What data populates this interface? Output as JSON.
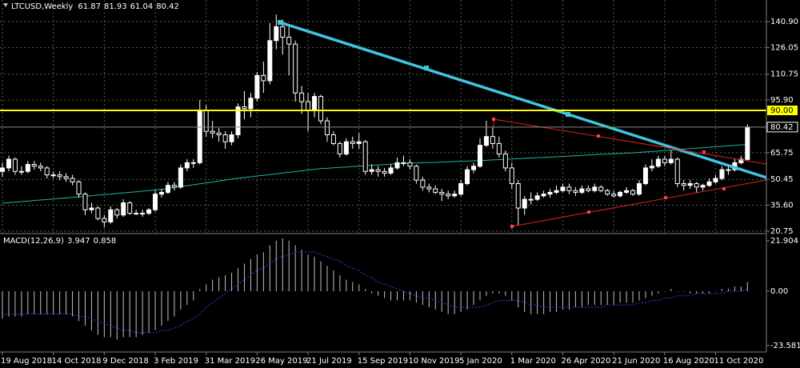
{
  "chart_data": {
    "type": "candlestick",
    "title": "LTCUSD,Weekly",
    "categories": [
      "19 Aug 2018",
      null,
      null,
      null,
      null,
      null,
      null,
      null,
      "14 Oct 2018",
      null,
      null,
      null,
      null,
      null,
      null,
      null,
      "9 Dec 2018",
      null,
      null,
      null,
      null,
      null,
      null,
      null,
      "3 Feb 2019",
      null,
      null,
      null,
      null,
      null,
      null,
      null,
      "31 Mar 2019",
      null,
      null,
      null,
      null,
      null,
      null,
      null,
      "26 May 2019",
      null,
      null,
      null,
      null,
      null,
      null,
      null,
      "21 Jul 2019",
      null,
      null,
      null,
      null,
      null,
      null,
      null,
      "15 Sep 2019",
      null,
      null,
      null,
      null,
      null,
      null,
      null,
      "10 Nov 2019",
      null,
      null,
      null,
      null,
      null,
      null,
      null,
      "5 Jan 2020",
      null,
      null,
      null,
      null,
      null,
      null,
      null,
      "1 Mar 2020",
      null,
      null,
      null,
      null,
      null,
      null,
      null,
      "26 Apr 2020",
      null,
      null,
      null,
      null,
      null,
      null,
      null,
      "21 Jun 2020",
      null,
      null,
      null,
      null,
      null,
      null,
      null,
      "16 Aug 2020",
      null,
      null,
      null,
      null,
      null,
      null,
      null,
      "11 Oct 2020",
      null,
      null,
      null,
      null,
      null
    ],
    "candles": [
      [
        55,
        60,
        52,
        57
      ],
      [
        57,
        64,
        55,
        62
      ],
      [
        62,
        63,
        53,
        55
      ],
      [
        55,
        58,
        53,
        55
      ],
      [
        55,
        61,
        54,
        59
      ],
      [
        59,
        61,
        56,
        58
      ],
      [
        58,
        60,
        55,
        57
      ],
      [
        57,
        58,
        51,
        53
      ],
      [
        53,
        55,
        51,
        53
      ],
      [
        53,
        55,
        50,
        52
      ],
      [
        52,
        54,
        49,
        51
      ],
      [
        51,
        53,
        47,
        49
      ],
      [
        49,
        50,
        40,
        42
      ],
      [
        42,
        43,
        30,
        33
      ],
      [
        33,
        37,
        31,
        34
      ],
      [
        34,
        35,
        27,
        28
      ],
      [
        28,
        30,
        23,
        26
      ],
      [
        26,
        35,
        25,
        33
      ],
      [
        33,
        34,
        28,
        30
      ],
      [
        30,
        39,
        29,
        37
      ],
      [
        37,
        38,
        30,
        31
      ],
      [
        31,
        33,
        30,
        31
      ],
      [
        31,
        33,
        29,
        31
      ],
      [
        31,
        34,
        30,
        33
      ],
      [
        33,
        44,
        32,
        42
      ],
      [
        42,
        45,
        40,
        43
      ],
      [
        43,
        49,
        42,
        47
      ],
      [
        47,
        49,
        44,
        46
      ],
      [
        46,
        59,
        45,
        57
      ],
      [
        57,
        62,
        55,
        60
      ],
      [
        60,
        62,
        57,
        60
      ],
      [
        60,
        96,
        59,
        90
      ],
      [
        90,
        93,
        75,
        78
      ],
      [
        78,
        84,
        74,
        77
      ],
      [
        77,
        80,
        72,
        76
      ],
      [
        76,
        78,
        68,
        72
      ],
      [
        72,
        78,
        70,
        76
      ],
      [
        76,
        94,
        74,
        92
      ],
      [
        92,
        101,
        85,
        91
      ],
      [
        91,
        100,
        86,
        97
      ],
      [
        97,
        112,
        95,
        110
      ],
      [
        110,
        118,
        100,
        107
      ],
      [
        107,
        140,
        105,
        130
      ],
      [
        130,
        145,
        125,
        138
      ],
      [
        138,
        142,
        122,
        132
      ],
      [
        132,
        138,
        110,
        128
      ],
      [
        128,
        130,
        95,
        100
      ],
      [
        100,
        104,
        88,
        95
      ],
      [
        95,
        100,
        78,
        90
      ],
      [
        90,
        100,
        86,
        98
      ],
      [
        98,
        99,
        82,
        84
      ],
      [
        84,
        86,
        72,
        76
      ],
      [
        76,
        78,
        70,
        71
      ],
      [
        71,
        72,
        63,
        65
      ],
      [
        65,
        74,
        64,
        72
      ],
      [
        72,
        75,
        68,
        71
      ],
      [
        71,
        77,
        68,
        72
      ],
      [
        72,
        73,
        53,
        55
      ],
      [
        55,
        59,
        53,
        56
      ],
      [
        56,
        58,
        52,
        55
      ],
      [
        55,
        57,
        52,
        54
      ],
      [
        54,
        59,
        53,
        57
      ],
      [
        57,
        63,
        56,
        60
      ],
      [
        60,
        64,
        58,
        60
      ],
      [
        60,
        62,
        56,
        58
      ],
      [
        58,
        59,
        48,
        50
      ],
      [
        50,
        52,
        44,
        46
      ],
      [
        46,
        48,
        43,
        45
      ],
      [
        45,
        47,
        42,
        43
      ],
      [
        43,
        45,
        38,
        42
      ],
      [
        42,
        44,
        39,
        41
      ],
      [
        41,
        44,
        40,
        42
      ],
      [
        42,
        50,
        41,
        48
      ],
      [
        48,
        58,
        47,
        56
      ],
      [
        56,
        60,
        54,
        58
      ],
      [
        58,
        74,
        57,
        70
      ],
      [
        70,
        84,
        69,
        75
      ],
      [
        75,
        80,
        68,
        71
      ],
      [
        71,
        75,
        63,
        65
      ],
      [
        65,
        67,
        55,
        57
      ],
      [
        57,
        60,
        45,
        48
      ],
      [
        48,
        50,
        24,
        34
      ],
      [
        34,
        41,
        30,
        39
      ],
      [
        39,
        43,
        36,
        39
      ],
      [
        39,
        43,
        38,
        41
      ],
      [
        41,
        44,
        40,
        42
      ],
      [
        42,
        45,
        40,
        43
      ],
      [
        43,
        47,
        42,
        44
      ],
      [
        44,
        48,
        43,
        46
      ],
      [
        46,
        48,
        42,
        44
      ],
      [
        44,
        46,
        41,
        43
      ],
      [
        43,
        47,
        42,
        45
      ],
      [
        45,
        47,
        43,
        44
      ],
      [
        44,
        48,
        43,
        46
      ],
      [
        46,
        47,
        43,
        44
      ],
      [
        44,
        45,
        41,
        42
      ],
      [
        42,
        44,
        40,
        41
      ],
      [
        41,
        44,
        40,
        43
      ],
      [
        43,
        46,
        42,
        44
      ],
      [
        44,
        45,
        41,
        42
      ],
      [
        42,
        50,
        41,
        48
      ],
      [
        48,
        59,
        47,
        57
      ],
      [
        57,
        62,
        55,
        58
      ],
      [
        58,
        64,
        57,
        62
      ],
      [
        62,
        64,
        58,
        60
      ],
      [
        60,
        67,
        59,
        62
      ],
      [
        62,
        63,
        46,
        48
      ],
      [
        48,
        50,
        44,
        47
      ],
      [
        47,
        50,
        45,
        48
      ],
      [
        48,
        49,
        43,
        46
      ],
      [
        46,
        48,
        44,
        47
      ],
      [
        47,
        51,
        46,
        49
      ],
      [
        49,
        53,
        48,
        51
      ],
      [
        51,
        58,
        50,
        56
      ],
      [
        56,
        58,
        53,
        56
      ],
      [
        56,
        62,
        55,
        60
      ],
      [
        60,
        64,
        59,
        62
      ],
      [
        61.87,
        81.93,
        61.04,
        80.42
      ]
    ],
    "candle_colors": {
      "up": "#ffffff",
      "down": "#000000",
      "outline": "#ffffff"
    },
    "ylim": [
      19.8,
      153.3
    ],
    "yticks": [
      {
        "value": 140.9,
        "label": "140.90"
      },
      {
        "value": 126.05,
        "label": "126.05"
      },
      {
        "value": 110.75,
        "label": "110.75"
      },
      {
        "value": 95.9,
        "label": "95.90"
      },
      {
        "value": 65.75,
        "label": "65.75"
      },
      {
        "value": 50.45,
        "label": "50.45"
      },
      {
        "value": 35.6,
        "label": "35.60"
      },
      {
        "value": 20.75,
        "label": "20.75"
      }
    ],
    "grid": true,
    "ma": {
      "color": "#20b2aa",
      "values": [
        36.8,
        37.1,
        37.4,
        37.7,
        38.0,
        38.3,
        38.6,
        38.9,
        39.2,
        39.5,
        39.8,
        40.1,
        40.4,
        40.7,
        41.1,
        41.4,
        41.7,
        42.0,
        42.4,
        42.7,
        43.0,
        43.3,
        43.7,
        44.0,
        44.4,
        44.7,
        45.2,
        45.8,
        46.3,
        46.8,
        47.4,
        47.9,
        48.4,
        48.9,
        49.5,
        50.0,
        50.6,
        51.1,
        51.5,
        51.9,
        52.4,
        52.8,
        53.2,
        53.6,
        54.1,
        54.5,
        54.9,
        55.3,
        55.8,
        56.2,
        56.6,
        56.8,
        57.1,
        57.3,
        57.5,
        57.8,
        58.0,
        58.2,
        58.5,
        58.7,
        58.9,
        59.2,
        59.4,
        59.5,
        59.7,
        59.8,
        60.0,
        60.1,
        60.2,
        60.4,
        60.5,
        60.7,
        60.8,
        60.9,
        61.1,
        61.2,
        61.4,
        61.6,
        61.8,
        62.0,
        62.1,
        62.3,
        62.5,
        62.7,
        62.9,
        63.0,
        63.2,
        63.4,
        63.6,
        63.8,
        64.0,
        64.2,
        64.4,
        64.6,
        64.8,
        64.9,
        65.1,
        65.3,
        65.5,
        65.7,
        65.9,
        66.2,
        66.4,
        66.7,
        67.0,
        67.3,
        67.5,
        67.8,
        68.1,
        68.3,
        68.6,
        68.9,
        69.2,
        69.4,
        69.7,
        70.0,
        70.2,
        70.5
      ]
    },
    "level": {
      "value": 90,
      "label": "90.00",
      "color": "#ffff00"
    },
    "last_price": {
      "value": 80.42,
      "label": "80.42"
    },
    "macd": {
      "label": "MACD(12,26,9)",
      "ylim": [
        -26.43,
        24.69
      ],
      "yticks": [
        21.904,
        {
          "value": 0,
          "label": "0.00"
        },
        -23.581
      ],
      "histogram": {
        "color": "#c0c0c0",
        "values": [
          -12,
          -11,
          -11,
          -11,
          -10,
          -10,
          -10,
          -10,
          -10,
          -10,
          -10,
          -11,
          -13,
          -15,
          -17,
          -19,
          -20,
          -20,
          -21,
          -20,
          -20,
          -20,
          -19,
          -18,
          -17,
          -15,
          -13,
          -11,
          -8,
          -6,
          -4,
          1,
          3,
          5,
          6,
          7,
          8,
          10,
          12,
          14,
          16,
          17,
          20,
          22,
          23,
          22,
          20,
          18,
          16,
          15,
          13,
          11,
          9,
          7,
          5,
          4,
          3,
          1,
          -1,
          -2,
          -3,
          -4,
          -4,
          -4,
          -4,
          -5,
          -6,
          -7,
          -8,
          -9,
          -10,
          -10,
          -9,
          -8,
          -6,
          -4,
          -2,
          -1,
          -1,
          -2,
          -4,
          -7,
          -9,
          -10,
          -10,
          -10,
          -9,
          -9,
          -8,
          -8,
          -7,
          -7,
          -6,
          -6,
          -6,
          -6,
          -6,
          -5,
          -5,
          -5,
          -4,
          -3,
          -2,
          -1,
          0,
          1,
          0,
          0,
          -1,
          -1,
          -1,
          -1,
          0,
          1,
          1,
          2,
          2,
          3.947
        ]
      },
      "signal": {
        "color": "#2a46e0",
        "values": [
          -10,
          -10,
          -10,
          -10,
          -10,
          -10,
          -10,
          -10,
          -10,
          -10,
          -10,
          -10,
          -11,
          -11,
          -12,
          -13,
          -14,
          -15,
          -16,
          -17,
          -17,
          -18,
          -18,
          -18,
          -18,
          -17,
          -17,
          -16,
          -15,
          -13,
          -12,
          -10,
          -7,
          -5,
          -3,
          -1,
          1,
          3,
          5,
          7,
          9,
          10,
          12,
          14,
          15,
          16,
          17,
          17,
          17,
          17,
          16,
          15,
          14,
          13,
          11,
          10,
          9,
          7,
          6,
          4,
          3,
          2,
          1,
          0,
          -1,
          -2,
          -3,
          -3,
          -4,
          -5,
          -6,
          -7,
          -7,
          -7,
          -7,
          -7,
          -6,
          -5,
          -4,
          -4,
          -4,
          -4,
          -5,
          -6,
          -6,
          -7,
          -7,
          -7,
          -7,
          -7,
          -7,
          -7,
          -7,
          -7,
          -7,
          -6,
          -6,
          -6,
          -6,
          -6,
          -5,
          -5,
          -4,
          -4,
          -3,
          -3,
          -2,
          -2,
          -2,
          -1,
          -1,
          -1,
          -1,
          -1,
          0,
          0,
          0,
          0.858
        ]
      }
    }
  }
}
